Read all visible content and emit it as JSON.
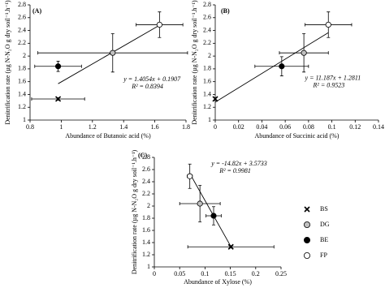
{
  "chart_data": [
    {
      "type": "scatter",
      "panel": "(A)",
      "x_label": "Abundance of Butanoic acid (%)",
      "y_label": "Denitrification rate (µg N-N₂O g dry soil⁻¹.h⁻¹)",
      "xlim": [
        0.8,
        1.8
      ],
      "xticks": [
        0.8,
        1,
        1.2,
        1.4,
        1.6,
        1.8
      ],
      "ylim": [
        1,
        2.8
      ],
      "yticks": [
        1,
        1.2,
        1.4,
        1.6,
        1.8,
        2,
        2.2,
        2.4,
        2.6,
        2.8
      ],
      "equation": "y = 1.4054x + 0.1907",
      "r_squared": "R² = 0.8394",
      "fit": {
        "slope": 1.4054,
        "intercept": 0.1907
      },
      "series": [
        {
          "name": "BS",
          "marker": "x",
          "color": "#000000",
          "x": [
            0.98
          ],
          "values": [
            1.33
          ],
          "xerr": [
            0.17
          ],
          "yerr": [
            0.02
          ]
        },
        {
          "name": "DG",
          "marker": "circle",
          "color": "#c0c0c0",
          "x": [
            1.33
          ],
          "values": [
            2.05
          ],
          "xerr": [
            0.48
          ],
          "yerr": [
            0.3
          ]
        },
        {
          "name": "BE",
          "marker": "circle",
          "color": "#000000",
          "x": [
            0.98
          ],
          "values": [
            1.84
          ],
          "xerr": [
            0.15
          ],
          "yerr": [
            0.08
          ]
        },
        {
          "name": "FP",
          "marker": "circle",
          "color": "#ffffff",
          "x": [
            1.63
          ],
          "values": [
            2.49
          ],
          "xerr": [
            0.15
          ],
          "yerr": [
            0.2
          ]
        }
      ]
    },
    {
      "type": "scatter",
      "panel": "(B)",
      "x_label": "Abundance of Succinic acid (%)",
      "y_label": "Denitrification rate (µg N-N₂O g dry soil⁻¹.h⁻¹)",
      "xlim": [
        0,
        0.14
      ],
      "xticks": [
        0,
        0.02,
        0.04,
        0.06,
        0.08,
        0.1,
        0.12,
        0.14
      ],
      "ylim": [
        1,
        2.8
      ],
      "yticks": [
        1,
        1.2,
        1.4,
        1.6,
        1.8,
        2,
        2.2,
        2.4,
        2.6,
        2.8
      ],
      "equation": "y = 11.187x + 1.2811",
      "r_squared": "R² = 0.9523",
      "fit": {
        "slope": 11.187,
        "intercept": 1.2811
      },
      "series": [
        {
          "name": "BS",
          "marker": "x",
          "color": "#000000",
          "x": [
            0
          ],
          "values": [
            1.33
          ],
          "xerr": [
            0
          ],
          "yerr": [
            0.02
          ]
        },
        {
          "name": "DG",
          "marker": "circle",
          "color": "#c0c0c0",
          "x": [
            0.076
          ],
          "values": [
            2.05
          ],
          "xerr": [
            0.021
          ],
          "yerr": [
            0.3
          ]
        },
        {
          "name": "BE",
          "marker": "circle",
          "color": "#000000",
          "x": [
            0.057
          ],
          "values": [
            1.84
          ],
          "xerr": [
            0.023
          ],
          "yerr": [
            0.15
          ]
        },
        {
          "name": "FP",
          "marker": "circle",
          "color": "#ffffff",
          "x": [
            0.097
          ],
          "values": [
            2.49
          ],
          "xerr": [
            0.02
          ],
          "yerr": [
            0.2
          ]
        }
      ]
    },
    {
      "type": "scatter",
      "panel": "(C)",
      "x_label": "Abundance of Xylose (%)",
      "y_label": "Denitrification rate (µg N-N₂O g dry soil⁻¹.h⁻¹)",
      "xlim": [
        0,
        0.25
      ],
      "xticks": [
        0,
        0.05,
        0.1,
        0.15,
        0.2,
        0.25
      ],
      "ylim": [
        1,
        2.8
      ],
      "yticks": [
        1,
        1.2,
        1.4,
        1.6,
        1.8,
        2,
        2.2,
        2.4,
        2.6,
        2.8
      ],
      "equation": "y = -14.82x + 3.5733",
      "r_squared": "R² = 0.9981",
      "fit": {
        "slope": -14.82,
        "intercept": 3.5733
      },
      "series": [
        {
          "name": "BS",
          "marker": "x",
          "color": "#000000",
          "x": [
            0.151
          ],
          "values": [
            1.33
          ],
          "xerr": [
            0.085
          ],
          "yerr": [
            0.02
          ]
        },
        {
          "name": "DG",
          "marker": "circle",
          "color": "#c0c0c0",
          "x": [
            0.09
          ],
          "values": [
            2.04
          ],
          "xerr": [
            0.04
          ],
          "yerr": [
            0.3
          ]
        },
        {
          "name": "BE",
          "marker": "circle",
          "color": "#000000",
          "x": [
            0.117
          ],
          "values": [
            1.84
          ],
          "xerr": [
            0.015
          ],
          "yerr": [
            0.15
          ]
        },
        {
          "name": "FP",
          "marker": "circle",
          "color": "#ffffff",
          "x": [
            0.07
          ],
          "values": [
            2.49
          ],
          "xerr": [
            0.005
          ],
          "yerr": [
            0.2
          ]
        }
      ]
    }
  ]
}
